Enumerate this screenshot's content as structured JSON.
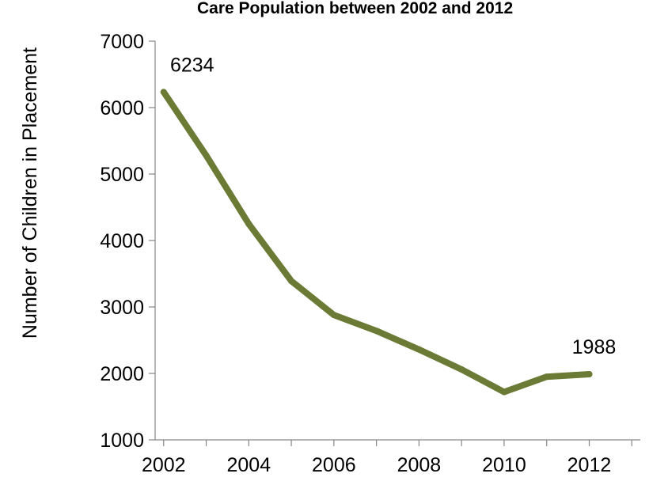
{
  "chart_data": {
    "type": "line",
    "title": "Care Population between 2002 and 2012",
    "xlabel": "",
    "ylabel": "Number of Children in Placement",
    "x": [
      2002,
      2003,
      2004,
      2005,
      2006,
      2007,
      2008,
      2009,
      2010,
      2011,
      2012
    ],
    "series": [
      {
        "values": [
          6234,
          5280,
          4250,
          3390,
          2880,
          2640,
          2360,
          2060,
          1720,
          1950,
          1988
        ]
      }
    ],
    "data_labels": [
      {
        "x": 2002,
        "text": "6234"
      },
      {
        "x": 2012,
        "text": "1988"
      }
    ],
    "xticks": [
      "2002",
      "2004",
      "2006",
      "2008",
      "2010",
      "2012"
    ],
    "yticks": [
      "1000",
      "2000",
      "3000",
      "4000",
      "5000",
      "6000",
      "7000"
    ],
    "xlim": [
      2001.8,
      2013.2
    ],
    "ylim": [
      1000,
      7000
    ],
    "grid": false,
    "legend": "none",
    "line_color": "#6b7a34"
  }
}
